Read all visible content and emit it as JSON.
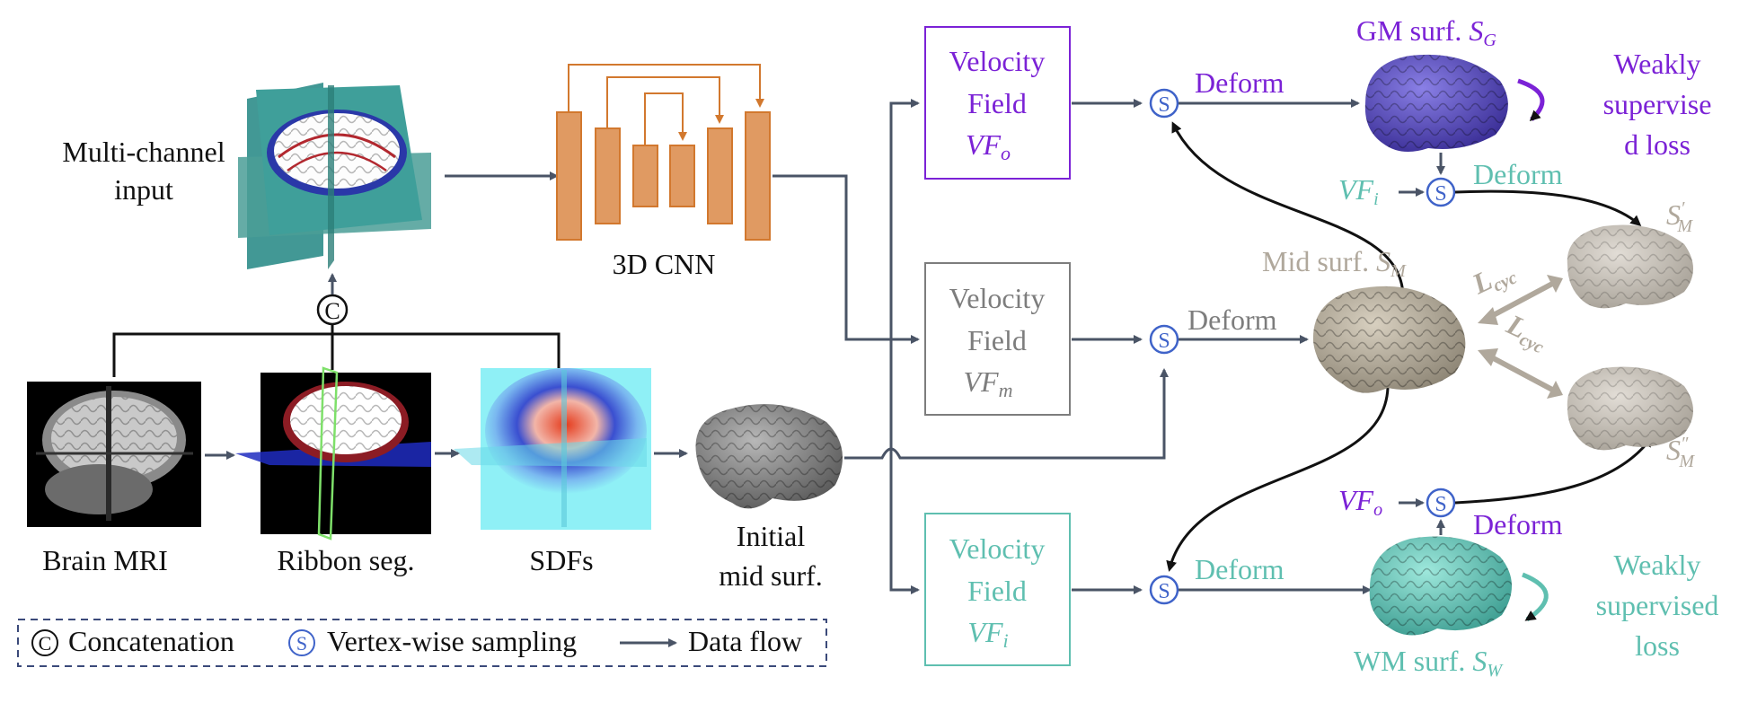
{
  "colors": {
    "purple": "#7b22d6",
    "teal": "#5fbfb0",
    "grey": "#7d7d7d",
    "beige": "#b0a89c",
    "arrow": "#4a5466",
    "cnn": "#e09a62",
    "cnn_line": "#d2782e",
    "sampling": "#3f63c9"
  },
  "labels": {
    "multichannel_line1": "Multi-channel",
    "multichannel_line2": "input",
    "cnn": "3D CNN",
    "brain_mri": "Brain MRI",
    "ribbon_seg": "Ribbon seg.",
    "sdfs": "SDFs",
    "initial_line1": "Initial",
    "initial_line2": "mid surf.",
    "concat_symbol": "C",
    "sampling_symbol": "S"
  },
  "velocity_fields": {
    "top": {
      "line1": "Velocity",
      "line2": "Field",
      "var": "VF",
      "sub": "o"
    },
    "mid": {
      "line1": "Velocity",
      "line2": "Field",
      "var": "VF",
      "sub": "m"
    },
    "bot": {
      "line1": "Velocity",
      "line2": "Field",
      "var": "VF",
      "sub": "i"
    }
  },
  "deform_label": "Deform",
  "surfaces": {
    "gm": {
      "text": "GM surf. ",
      "var": "S",
      "sub": "G"
    },
    "mid": {
      "text": "Mid surf. ",
      "var": "S",
      "sub": "M"
    },
    "wm": {
      "text": "WM surf. ",
      "var": "S",
      "sub": "W"
    },
    "sm_prime": {
      "var": "S",
      "sub": "M",
      "sup": "′"
    },
    "sm_dprime": {
      "var": "S",
      "sub": "M",
      "sup": "″"
    }
  },
  "vf_side": {
    "vfi": {
      "var": "VF",
      "sub": "i"
    },
    "vfo": {
      "var": "VF",
      "sub": "o"
    }
  },
  "loss": {
    "lcyc": {
      "var": "L",
      "sub": "cyc"
    },
    "weak_top": [
      "Weakly",
      "supervise",
      "d loss"
    ],
    "weak_bot": [
      "Weakly",
      "supervised",
      "loss"
    ]
  },
  "legend": {
    "concatenation": "Concatenation",
    "sampling": "Vertex-wise sampling",
    "dataflow": "Data flow"
  }
}
